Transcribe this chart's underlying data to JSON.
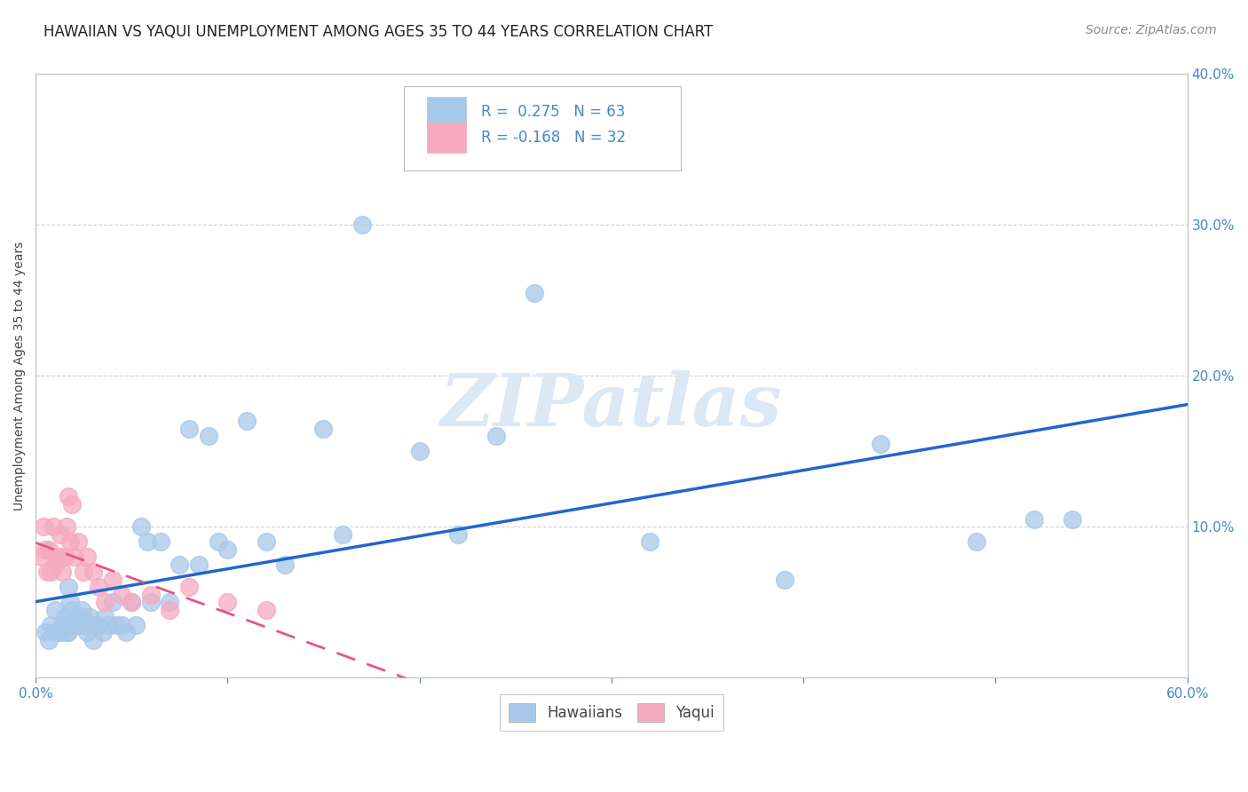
{
  "title": "HAWAIIAN VS YAQUI UNEMPLOYMENT AMONG AGES 35 TO 44 YEARS CORRELATION CHART",
  "source_text": "Source: ZipAtlas.com",
  "ylabel": "Unemployment Among Ages 35 to 44 years",
  "xlim": [
    0.0,
    0.6
  ],
  "ylim": [
    0.0,
    0.4
  ],
  "xticks_major": [
    0.0,
    0.1,
    0.2,
    0.3,
    0.4,
    0.5,
    0.6
  ],
  "yticks": [
    0.0,
    0.1,
    0.2,
    0.3,
    0.4
  ],
  "background_color": "#ffffff",
  "watermark": "ZIPatlas",
  "watermark_color": "#dde8f5",
  "hawaiian_color": "#a8c8ea",
  "yaqui_color": "#f5aabf",
  "hawaiian_line_color": "#2266cc",
  "yaqui_line_color": "#e85580",
  "tick_color": "#4488cc",
  "grid_color": "#cccccc",
  "hawaiian_R": 0.275,
  "hawaiian_N": 63,
  "yaqui_R": -0.168,
  "yaqui_N": 32,
  "hawaiian_x": [
    0.005,
    0.007,
    0.008,
    0.01,
    0.01,
    0.012,
    0.013,
    0.014,
    0.015,
    0.015,
    0.016,
    0.017,
    0.017,
    0.018,
    0.019,
    0.02,
    0.021,
    0.022,
    0.023,
    0.024,
    0.025,
    0.026,
    0.027,
    0.028,
    0.03,
    0.031,
    0.033,
    0.035,
    0.036,
    0.038,
    0.04,
    0.042,
    0.045,
    0.047,
    0.05,
    0.052,
    0.055,
    0.058,
    0.06,
    0.065,
    0.07,
    0.075,
    0.08,
    0.085,
    0.09,
    0.095,
    0.1,
    0.11,
    0.12,
    0.13,
    0.15,
    0.16,
    0.17,
    0.2,
    0.22,
    0.24,
    0.26,
    0.32,
    0.39,
    0.44,
    0.49,
    0.52,
    0.54
  ],
  "hawaiian_y": [
    0.03,
    0.025,
    0.035,
    0.03,
    0.045,
    0.03,
    0.03,
    0.035,
    0.04,
    0.035,
    0.03,
    0.03,
    0.06,
    0.05,
    0.045,
    0.035,
    0.04,
    0.035,
    0.035,
    0.045,
    0.04,
    0.035,
    0.03,
    0.04,
    0.025,
    0.035,
    0.035,
    0.03,
    0.04,
    0.035,
    0.05,
    0.035,
    0.035,
    0.03,
    0.05,
    0.035,
    0.1,
    0.09,
    0.05,
    0.09,
    0.05,
    0.075,
    0.165,
    0.075,
    0.16,
    0.09,
    0.085,
    0.17,
    0.09,
    0.075,
    0.165,
    0.095,
    0.3,
    0.15,
    0.095,
    0.16,
    0.255,
    0.09,
    0.065,
    0.155,
    0.09,
    0.105,
    0.105
  ],
  "yaqui_x": [
    0.003,
    0.004,
    0.005,
    0.006,
    0.007,
    0.008,
    0.009,
    0.01,
    0.011,
    0.012,
    0.013,
    0.014,
    0.015,
    0.016,
    0.017,
    0.018,
    0.019,
    0.02,
    0.022,
    0.025,
    0.027,
    0.03,
    0.033,
    0.036,
    0.04,
    0.045,
    0.05,
    0.06,
    0.07,
    0.08,
    0.1,
    0.12
  ],
  "yaqui_y": [
    0.08,
    0.1,
    0.085,
    0.07,
    0.085,
    0.07,
    0.1,
    0.075,
    0.08,
    0.08,
    0.095,
    0.07,
    0.08,
    0.1,
    0.12,
    0.09,
    0.115,
    0.08,
    0.09,
    0.07,
    0.08,
    0.07,
    0.06,
    0.05,
    0.065,
    0.055,
    0.05,
    0.055,
    0.045,
    0.06,
    0.05,
    0.045
  ],
  "title_fontsize": 12,
  "axis_label_fontsize": 10,
  "tick_fontsize": 11,
  "legend_fontsize": 12,
  "source_fontsize": 10
}
